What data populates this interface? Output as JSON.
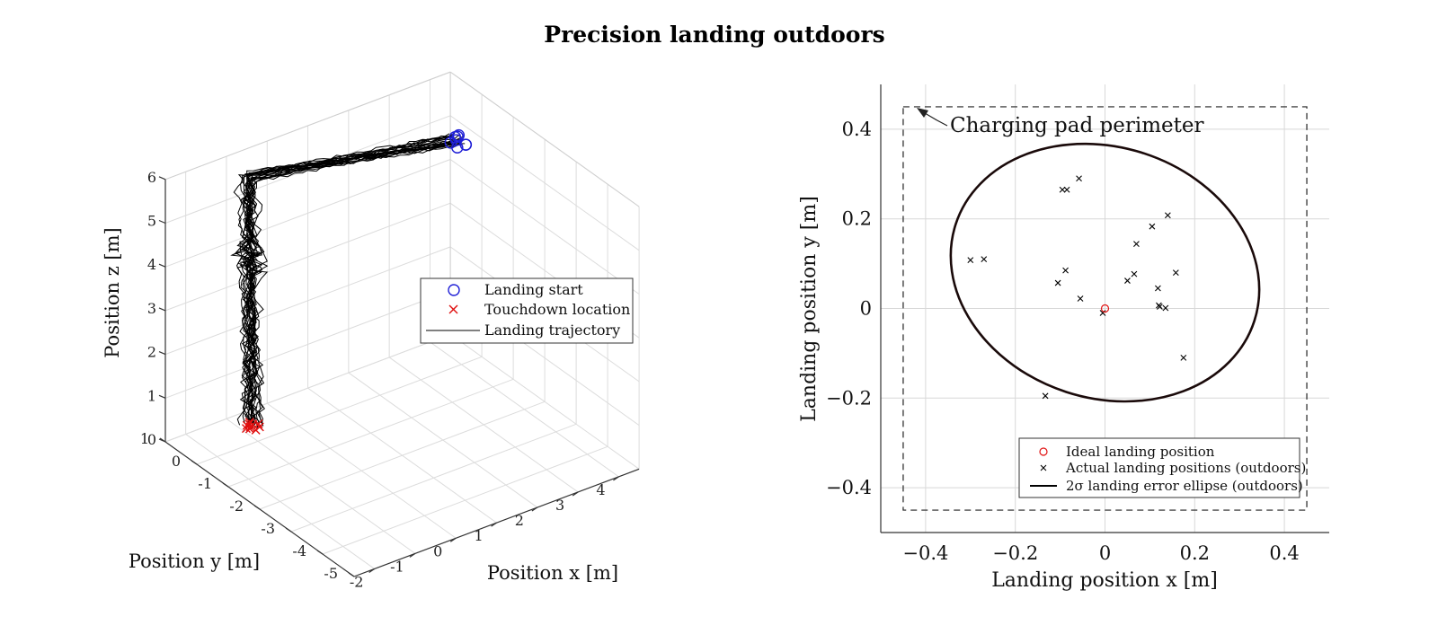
{
  "title": "Precision landing outdoors",
  "chart_data": [
    {
      "type": "line",
      "projection": "3d",
      "xlabel": "Position x [m]",
      "ylabel": "Position y [m]",
      "zlabel": "Position z [m]",
      "xlim": [
        -2.5,
        4.5
      ],
      "ylim": [
        -5,
        1
      ],
      "zlim": [
        0,
        6
      ],
      "xticks": [
        "-2",
        "-1",
        "0",
        "1",
        "2",
        "3",
        "4"
      ],
      "yticks": [
        "1",
        "0",
        "-1",
        "-2",
        "-3",
        "-4",
        "-5"
      ],
      "zticks": [
        "0",
        "1",
        "2",
        "3",
        "4",
        "5",
        "6"
      ],
      "grid": true,
      "legend_position": "center-right",
      "legend": [
        "Landing start",
        "Touchdown location",
        "Landing trajectory"
      ],
      "colors": {
        "start": "#1f1fd6",
        "touchdown": "#e01010",
        "trajectory": "#000000"
      },
      "trajectory_path": {
        "start": [
          3.65,
          -0.3,
          5.4
        ],
        "corner": [
          -1.0,
          0.3,
          5.9
        ],
        "mid": [
          -1.0,
          0.3,
          4.2
        ],
        "touchdown": [
          -0.75,
          0.5,
          0.0
        ]
      },
      "trajectory_count": 22,
      "landing_start_points": [
        [
          3.6,
          -0.35,
          5.45
        ],
        [
          3.75,
          -0.2,
          5.4
        ],
        [
          3.55,
          -0.45,
          5.35
        ],
        [
          3.7,
          -0.3,
          5.5
        ],
        [
          3.8,
          -0.4,
          5.3
        ],
        [
          3.65,
          -0.25,
          5.45
        ],
        [
          3.5,
          -0.3,
          5.4
        ],
        [
          3.72,
          -0.5,
          5.38
        ]
      ],
      "touchdown_points": [
        [
          -0.8,
          0.5,
          0.0
        ],
        [
          -0.7,
          0.55,
          0.0
        ],
        [
          -0.85,
          0.45,
          0.0
        ],
        [
          -0.65,
          0.4,
          0.0
        ],
        [
          -0.75,
          0.6,
          0.0
        ],
        [
          -0.9,
          0.5,
          0.0
        ],
        [
          -0.6,
          0.5,
          0.0
        ],
        [
          -0.78,
          0.35,
          0.0
        ],
        [
          -0.7,
          0.65,
          0.0
        ],
        [
          -0.82,
          0.58,
          0.0
        ]
      ]
    },
    {
      "type": "scatter",
      "xlabel": "Landing position x [m]",
      "ylabel": "Landing position y [m]",
      "xlim": [
        -0.5,
        0.5
      ],
      "ylim": [
        -0.5,
        0.5
      ],
      "xticks": [
        "−0.4",
        "−0.2",
        "0",
        "0.2",
        "0.4"
      ],
      "yticks": [
        "0.4",
        "0.2",
        "0",
        "−0.2",
        "−0.4"
      ],
      "grid": true,
      "legend_position": "bottom-right",
      "annotation": "Charging pad perimeter",
      "pad_perimeter": [
        -0.45,
        0.45
      ],
      "ideal_landing": [
        0,
        0
      ],
      "actual_landings": [
        [
          -0.058,
          0.29
        ],
        [
          -0.095,
          0.265
        ],
        [
          -0.085,
          0.265
        ],
        [
          -0.3,
          0.108
        ],
        [
          -0.27,
          0.11
        ],
        [
          -0.088,
          0.085
        ],
        [
          -0.105,
          0.057
        ],
        [
          -0.055,
          0.022
        ],
        [
          -0.005,
          -0.01
        ],
        [
          0.105,
          0.183
        ],
        [
          0.07,
          0.144
        ],
        [
          0.14,
          0.208
        ],
        [
          0.158,
          0.08
        ],
        [
          0.065,
          0.077
        ],
        [
          0.05,
          0.062
        ],
        [
          0.118,
          0.045
        ],
        [
          0.12,
          0.007
        ],
        [
          0.122,
          0.004
        ],
        [
          0.135,
          0.001
        ],
        [
          0.175,
          -0.11
        ],
        [
          -0.133,
          -0.195
        ]
      ],
      "ellipse": {
        "center": [
          0.0,
          0.08
        ],
        "rx": 0.35,
        "ry": 0.28,
        "angle_deg": -18
      },
      "legend": [
        "Ideal landing position",
        "Actual landing positions (outdoors)",
        "2σ landing error ellipse (outdoors)"
      ],
      "colors": {
        "ideal": "#e01010",
        "actual": "#000000",
        "ellipse": "#1a0a0a"
      }
    }
  ]
}
